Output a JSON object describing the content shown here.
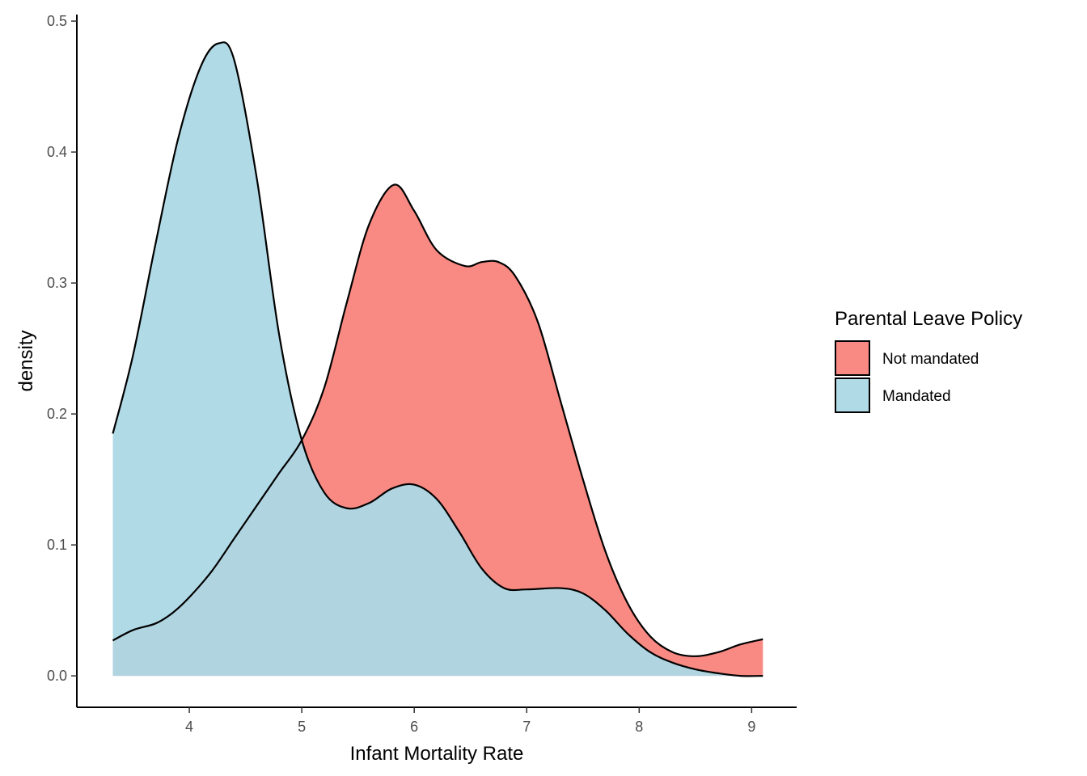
{
  "chart_data": {
    "type": "area",
    "xlabel": "Infant Mortality Rate",
    "ylabel": "density",
    "xlim": [
      3.0,
      9.4
    ],
    "ylim": [
      -0.024,
      0.505
    ],
    "x_ticks": [
      4,
      5,
      6,
      7,
      8,
      9
    ],
    "y_ticks": [
      0.0,
      0.1,
      0.2,
      0.3,
      0.4,
      0.5
    ],
    "x_tick_labels": [
      "4",
      "5",
      "6",
      "7",
      "8",
      "9"
    ],
    "y_tick_labels": [
      "0.0",
      "0.1",
      "0.2",
      "0.3",
      "0.4",
      "0.5"
    ],
    "grid": false,
    "legend": {
      "title": "Parental Leave Policy",
      "position": "right",
      "entries": [
        "Not mandated",
        "Mandated"
      ]
    },
    "series": [
      {
        "name": "Not mandated",
        "color": "#F8766D",
        "opacity": 0.85,
        "points": [
          [
            3.32,
            0.027
          ],
          [
            3.5,
            0.035
          ],
          [
            3.7,
            0.04
          ],
          [
            3.85,
            0.048
          ],
          [
            4.0,
            0.06
          ],
          [
            4.2,
            0.08
          ],
          [
            4.4,
            0.105
          ],
          [
            4.6,
            0.13
          ],
          [
            4.8,
            0.155
          ],
          [
            5.0,
            0.18
          ],
          [
            5.2,
            0.22
          ],
          [
            5.4,
            0.285
          ],
          [
            5.6,
            0.345
          ],
          [
            5.82,
            0.375
          ],
          [
            6.0,
            0.355
          ],
          [
            6.2,
            0.325
          ],
          [
            6.45,
            0.313
          ],
          [
            6.6,
            0.316
          ],
          [
            6.75,
            0.316
          ],
          [
            6.9,
            0.305
          ],
          [
            7.1,
            0.27
          ],
          [
            7.3,
            0.21
          ],
          [
            7.5,
            0.15
          ],
          [
            7.7,
            0.095
          ],
          [
            7.9,
            0.055
          ],
          [
            8.1,
            0.03
          ],
          [
            8.3,
            0.018
          ],
          [
            8.5,
            0.015
          ],
          [
            8.7,
            0.018
          ],
          [
            8.9,
            0.024
          ],
          [
            9.1,
            0.028
          ]
        ]
      },
      {
        "name": "Mandated",
        "color": "#ADD8E6",
        "opacity": 0.95,
        "points": [
          [
            3.32,
            0.185
          ],
          [
            3.5,
            0.245
          ],
          [
            3.7,
            0.33
          ],
          [
            3.9,
            0.41
          ],
          [
            4.1,
            0.465
          ],
          [
            4.26,
            0.483
          ],
          [
            4.4,
            0.47
          ],
          [
            4.6,
            0.38
          ],
          [
            4.8,
            0.26
          ],
          [
            5.0,
            0.18
          ],
          [
            5.2,
            0.14
          ],
          [
            5.4,
            0.128
          ],
          [
            5.6,
            0.132
          ],
          [
            5.8,
            0.143
          ],
          [
            6.0,
            0.146
          ],
          [
            6.2,
            0.135
          ],
          [
            6.4,
            0.11
          ],
          [
            6.6,
            0.082
          ],
          [
            6.8,
            0.067
          ],
          [
            7.0,
            0.066
          ],
          [
            7.3,
            0.067
          ],
          [
            7.5,
            0.063
          ],
          [
            7.7,
            0.05
          ],
          [
            7.9,
            0.032
          ],
          [
            8.1,
            0.018
          ],
          [
            8.3,
            0.01
          ],
          [
            8.5,
            0.005
          ],
          [
            8.7,
            0.002
          ],
          [
            8.9,
            0.0
          ],
          [
            9.1,
            0.0
          ]
        ]
      }
    ]
  }
}
